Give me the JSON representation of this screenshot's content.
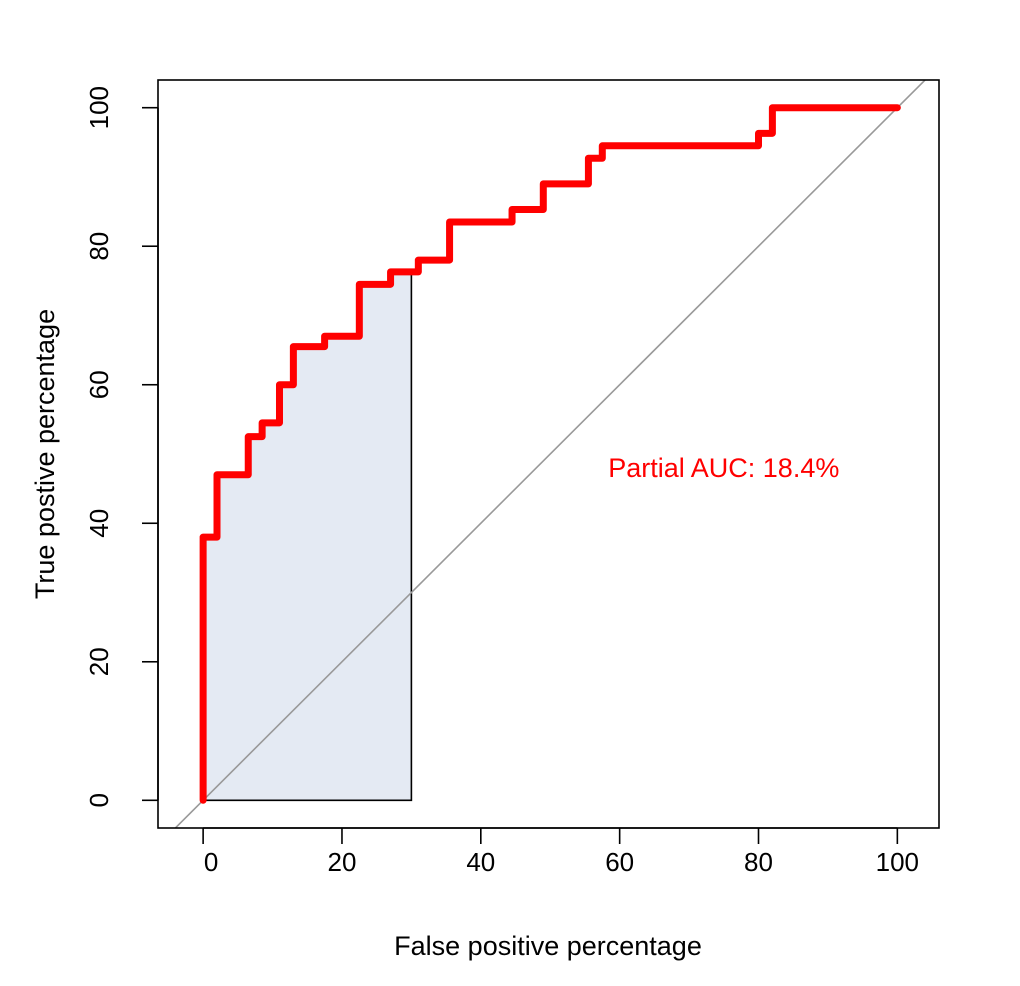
{
  "chart_data": {
    "type": "line",
    "title": "",
    "xlabel": "False positive percentage",
    "ylabel": "True postive percentage",
    "xlim": [
      -6.5,
      106
    ],
    "ylim": [
      -4,
      104
    ],
    "x_ticks": [
      0,
      20,
      40,
      60,
      80,
      100
    ],
    "y_ticks": [
      0,
      20,
      40,
      60,
      80,
      100
    ],
    "x_tick_labels": [
      "0",
      "20",
      "40",
      "60",
      "80",
      "100"
    ],
    "y_tick_labels": [
      "0",
      "20",
      "40",
      "60",
      "80",
      "100"
    ],
    "grid": false,
    "legend": "none",
    "partial_auc_region": {
      "x_range": [
        0,
        30
      ],
      "fill_color": "#e4eaf3"
    },
    "diagonal": {
      "color": "#999999"
    },
    "annotation": {
      "text": "Partial AUC: 18.4%",
      "x": 75,
      "y": 48,
      "color": "#ff0000"
    },
    "series": [
      {
        "color": "#ff0000",
        "x": [
          0,
          0,
          2,
          2,
          6.5,
          6.5,
          8.5,
          8.5,
          11,
          11,
          13,
          13,
          17.5,
          17.5,
          22.5,
          22.5,
          27,
          27,
          31,
          31,
          35.5,
          35.5,
          44.5,
          44.5,
          49,
          49,
          55.5,
          55.5,
          57.5,
          57.5,
          80,
          80,
          82,
          82,
          100
        ],
        "y": [
          0,
          38,
          38,
          47,
          47,
          52.5,
          52.5,
          54.5,
          54.5,
          60,
          60,
          65.5,
          65.5,
          67,
          67,
          74.5,
          74.5,
          76.3,
          76.3,
          78,
          78,
          83.5,
          83.5,
          85.3,
          85.3,
          89,
          89,
          92.7,
          92.7,
          94.5,
          94.5,
          96.3,
          96.3,
          100,
          100
        ]
      }
    ]
  }
}
